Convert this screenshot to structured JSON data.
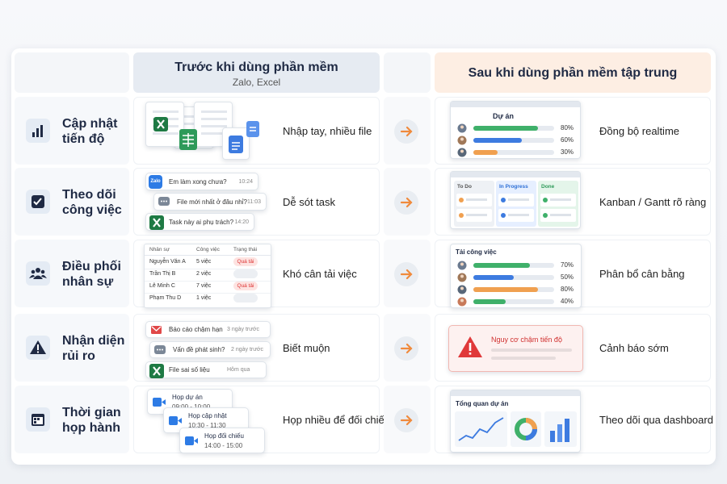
{
  "header": {
    "before_title": "Trước khi dùng phần mềm",
    "before_subtitle": "Zalo, Excel",
    "after_title": "Sau khi dùng phần mềm tập trung"
  },
  "rows": [
    {
      "label": "Cập nhật tiến độ",
      "before": {
        "text": "Nhập tay, nhiều file"
      },
      "after": {
        "title": "Dự án",
        "progress": [
          {
            "value": 80,
            "label": "80%"
          },
          {
            "value": 60,
            "label": "60%"
          },
          {
            "value": 30,
            "label": "30%"
          }
        ],
        "text": "Đồng bộ realtime"
      }
    },
    {
      "label": "Theo dõi công việc",
      "before": {
        "app": "Zalo",
        "messages": [
          {
            "text": "Em làm xong chưa?",
            "time": "10:24"
          },
          {
            "text": "File mới nhất ở đâu nhỉ?",
            "time": "11:03"
          },
          {
            "text": "Task này ai phụ trách?",
            "time": "14:20"
          }
        ],
        "text": "Dễ sót task"
      },
      "after": {
        "columns": [
          "To Do",
          "In Progress",
          "Done"
        ],
        "text": "Kanban / Gantt rõ ràng"
      }
    },
    {
      "label": "Điều phối nhân sự",
      "before": {
        "table": {
          "headers": [
            "Nhân sự",
            "Công việc",
            "Trạng thái"
          ],
          "rows": [
            [
              "Nguyễn Văn A",
              "5 việc",
              "Quá tải"
            ],
            [
              "Trần Thị B",
              "2 việc",
              null
            ],
            [
              "Lê Minh C",
              "7 việc",
              "Quá tải"
            ],
            [
              "Phạm Thu D",
              "1 việc",
              null
            ]
          ]
        },
        "text": "Khó cân tải việc"
      },
      "after": {
        "title": "Tải công việc",
        "progress": [
          {
            "value": 70,
            "label": "70%"
          },
          {
            "value": 50,
            "label": "50%"
          },
          {
            "value": 80,
            "label": "80%"
          },
          {
            "value": 40,
            "label": "40%"
          }
        ],
        "text": "Phân bổ cân bằng"
      }
    },
    {
      "label": "Nhận diện rủi ro",
      "before": {
        "alerts": [
          {
            "text": "Báo cáo chậm hạn",
            "time": "3 ngày trước"
          },
          {
            "text": "Vấn đề phát sinh?",
            "time": "2 ngày trước"
          },
          {
            "text": "File sai số liệu",
            "time": "Hôm qua"
          }
        ],
        "text": "Biết muộn"
      },
      "after": {
        "warning": "Nguy cơ chậm tiến độ",
        "text": "Cảnh báo sớm"
      }
    },
    {
      "label": "Thời gian họp hành",
      "before": {
        "meetings": [
          {
            "title": "Họp dự án",
            "time": "09:00 - 10:00"
          },
          {
            "title": "Họp cập nhật",
            "time": "10:30 - 11:30"
          },
          {
            "title": "Họp đối chiếu",
            "time": "14:00 - 15:00"
          }
        ],
        "text": "Họp nhiều để đối chiếu"
      },
      "after": {
        "title": "Tổng quan dự án",
        "text": "Theo dõi qua dashboard"
      }
    }
  ]
}
